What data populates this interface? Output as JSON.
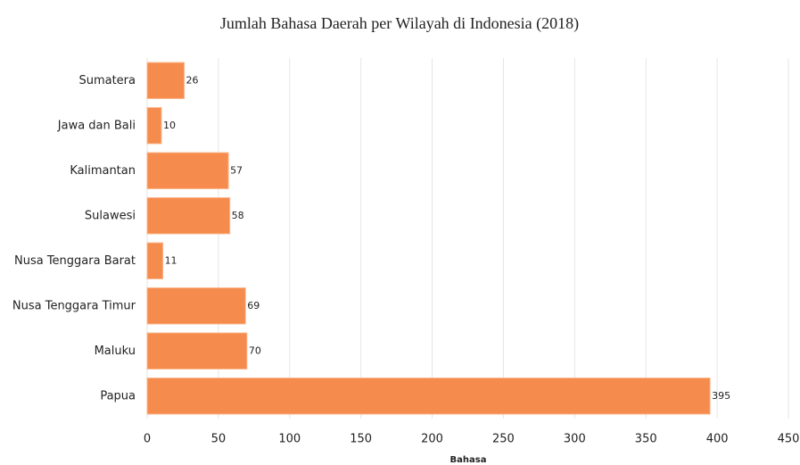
{
  "chart_data": {
    "type": "bar",
    "orientation": "horizontal",
    "title": "Jumlah Bahasa Daerah per Wilayah di Indonesia (2018)",
    "x_label": "Bahasa",
    "categories": [
      "Sumatera",
      "Jawa dan Bali",
      "Kalimantan",
      "Sulawesi",
      "Nusa Tenggara Barat",
      "Nusa Tenggara Timur",
      "Maluku",
      "Papua"
    ],
    "values": [
      26,
      10,
      57,
      58,
      11,
      69,
      70,
      395
    ],
    "color": "#f58b4c",
    "xlim": [
      0,
      450
    ],
    "xticks": [
      0,
      50,
      100,
      150,
      200,
      250,
      300,
      350,
      400,
      450
    ],
    "grid": true
  }
}
